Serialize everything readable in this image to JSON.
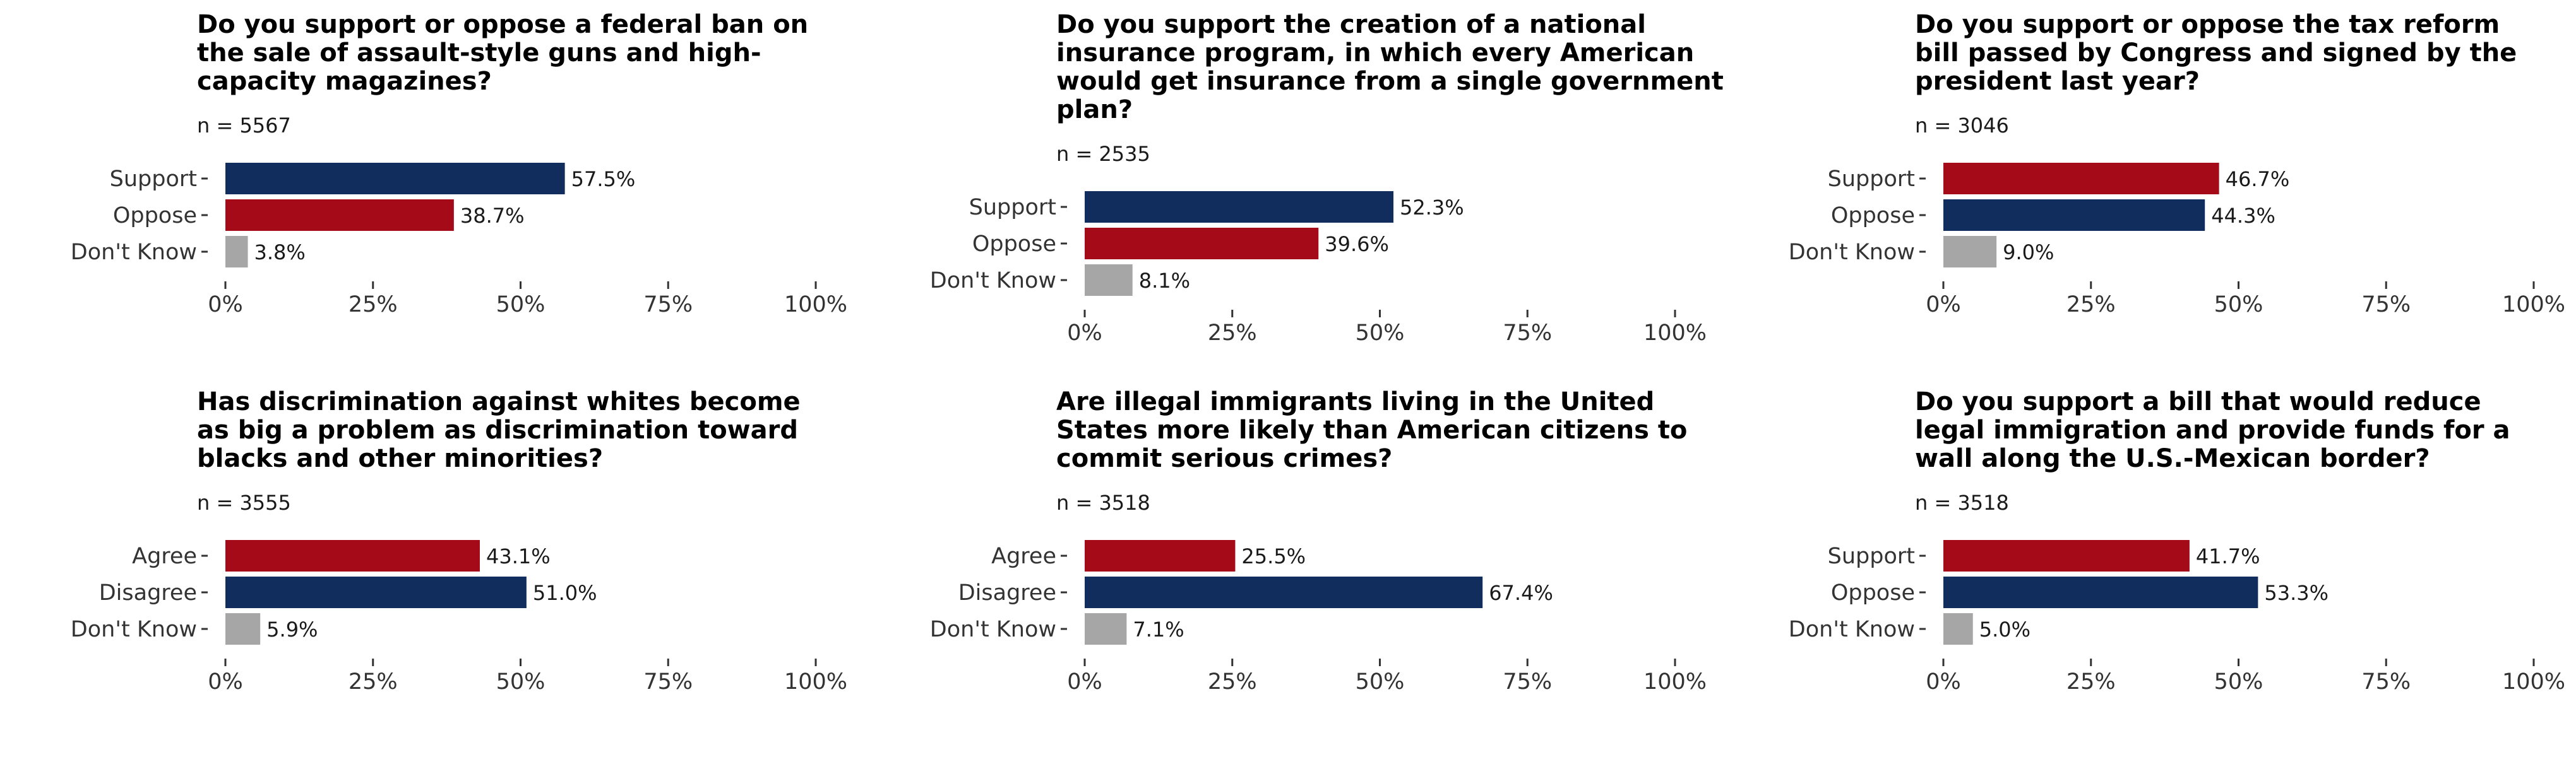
{
  "colors": {
    "navy": "#102d5e",
    "red": "#a50a18",
    "gray": "#a6a6a6"
  },
  "chart_data": [
    {
      "type": "bar",
      "orientation": "horizontal",
      "title": "Do you support or oppose a federal ban on the sale of assault-style guns and high-capacity magazines?",
      "title_lines": [
        "Do you support or oppose a federal ban on",
        "the sale of assault-style guns and high-",
        "capacity magazines?"
      ],
      "n_label": "n = 5567",
      "categories": [
        "Support",
        "Oppose",
        "Don't Know"
      ],
      "values": [
        57.5,
        38.7,
        3.8
      ],
      "value_labels": [
        "57.5%",
        "38.7%",
        "3.8%"
      ],
      "bar_colors": [
        "#102d5e",
        "#a50a18",
        "#a6a6a6"
      ],
      "xlim": [
        0,
        100
      ],
      "xticks": [
        0,
        25,
        50,
        75,
        100
      ],
      "xtick_labels": [
        "0%",
        "25%",
        "50%",
        "75%",
        "100%"
      ],
      "grid": false
    },
    {
      "type": "bar",
      "orientation": "horizontal",
      "title": "Do you support the creation of a national insurance program, in which every American would get insurance from a single government plan?",
      "title_lines": [
        "Do you support the creation of a national",
        "insurance program, in which every American",
        "would get insurance from a single government",
        "plan?"
      ],
      "n_label": "n = 2535",
      "categories": [
        "Support",
        "Oppose",
        "Don't Know"
      ],
      "values": [
        52.3,
        39.6,
        8.1
      ],
      "value_labels": [
        "52.3%",
        "39.6%",
        "8.1%"
      ],
      "bar_colors": [
        "#102d5e",
        "#a50a18",
        "#a6a6a6"
      ],
      "xlim": [
        0,
        100
      ],
      "xticks": [
        0,
        25,
        50,
        75,
        100
      ],
      "xtick_labels": [
        "0%",
        "25%",
        "50%",
        "75%",
        "100%"
      ],
      "grid": false
    },
    {
      "type": "bar",
      "orientation": "horizontal",
      "title": "Do you support or oppose the tax reform bill passed by Congress and signed by the president last year?",
      "title_lines": [
        "Do you support or oppose the tax reform",
        "bill passed by Congress and signed by the",
        "president last year?"
      ],
      "n_label": "n = 3046",
      "categories": [
        "Support",
        "Oppose",
        "Don't Know"
      ],
      "values": [
        46.7,
        44.3,
        9.0
      ],
      "value_labels": [
        "46.7%",
        "44.3%",
        "9.0%"
      ],
      "bar_colors": [
        "#a50a18",
        "#102d5e",
        "#a6a6a6"
      ],
      "xlim": [
        0,
        100
      ],
      "xticks": [
        0,
        25,
        50,
        75,
        100
      ],
      "xtick_labels": [
        "0%",
        "25%",
        "50%",
        "75%",
        "100%"
      ],
      "grid": false
    },
    {
      "type": "bar",
      "orientation": "horizontal",
      "title": "Has discrimination against whites become as big a problem as discrimination toward blacks and other minorities?",
      "title_lines": [
        "Has discrimination against whites become",
        "as big a problem as discrimination toward",
        "blacks and other minorities?"
      ],
      "n_label": "n = 3555",
      "categories": [
        "Agree",
        "Disagree",
        "Don't Know"
      ],
      "values": [
        43.1,
        51.0,
        5.9
      ],
      "value_labels": [
        "43.1%",
        "51.0%",
        "5.9%"
      ],
      "bar_colors": [
        "#a50a18",
        "#102d5e",
        "#a6a6a6"
      ],
      "xlim": [
        0,
        100
      ],
      "xticks": [
        0,
        25,
        50,
        75,
        100
      ],
      "xtick_labels": [
        "0%",
        "25%",
        "50%",
        "75%",
        "100%"
      ],
      "grid": false
    },
    {
      "type": "bar",
      "orientation": "horizontal",
      "title": "Are illegal immigrants living in the United States more likely than American citizens to commit serious crimes?",
      "title_lines": [
        "Are illegal immigrants living in the United",
        "States more likely than American citizens to",
        "commit serious crimes?"
      ],
      "n_label": "n = 3518",
      "categories": [
        "Agree",
        "Disagree",
        "Don't Know"
      ],
      "values": [
        25.5,
        67.4,
        7.1
      ],
      "value_labels": [
        "25.5%",
        "67.4%",
        "7.1%"
      ],
      "bar_colors": [
        "#a50a18",
        "#102d5e",
        "#a6a6a6"
      ],
      "xlim": [
        0,
        100
      ],
      "xticks": [
        0,
        25,
        50,
        75,
        100
      ],
      "xtick_labels": [
        "0%",
        "25%",
        "50%",
        "75%",
        "100%"
      ],
      "grid": false
    },
    {
      "type": "bar",
      "orientation": "horizontal",
      "title": "Do you support a bill that would reduce legal immigration and provide funds for a wall along the U.S.-Mexican border?",
      "title_lines": [
        "Do you support a bill that would reduce",
        "legal immigration and provide funds for a",
        "wall along the U.S.-Mexican border?"
      ],
      "n_label": "n = 3518",
      "categories": [
        "Support",
        "Oppose",
        "Don't Know"
      ],
      "values": [
        41.7,
        53.3,
        5.0
      ],
      "value_labels": [
        "41.7%",
        "53.3%",
        "5.0%"
      ],
      "bar_colors": [
        "#a50a18",
        "#102d5e",
        "#a6a6a6"
      ],
      "xlim": [
        0,
        100
      ],
      "xticks": [
        0,
        25,
        50,
        75,
        100
      ],
      "xtick_labels": [
        "0%",
        "25%",
        "50%",
        "75%",
        "100%"
      ],
      "grid": false
    }
  ]
}
